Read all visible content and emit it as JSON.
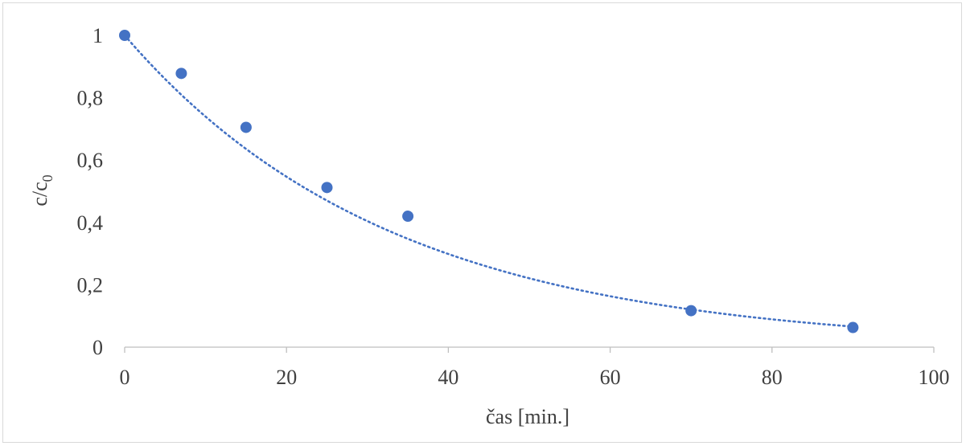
{
  "chart_data": {
    "type": "scatter",
    "xlabel": "čas [min.]",
    "ylabel": {
      "main": "c/c",
      "subscript": "0"
    },
    "xlim": [
      0,
      100
    ],
    "ylim": [
      0,
      1
    ],
    "xticks": [
      0,
      20,
      40,
      60,
      80,
      100
    ],
    "xtick_labels": [
      "0",
      "20",
      "40",
      "60",
      "80",
      "100"
    ],
    "yticks": [
      0,
      0.2,
      0.4,
      0.6,
      0.8,
      1
    ],
    "ytick_labels": [
      "0",
      "0,2",
      "0,4",
      "0,6",
      "0,8",
      "1"
    ],
    "grid": false,
    "legend": "none",
    "series": [
      {
        "x": [
          0,
          7,
          15,
          25,
          35,
          70,
          90
        ],
        "y": [
          1.0,
          0.878,
          0.705,
          0.512,
          0.42,
          0.117,
          0.063
        ],
        "marker": "circle",
        "color": "#4472c4"
      }
    ],
    "trendline": {
      "kind": "exponential",
      "style": "dotted",
      "color": "#4472c4",
      "x_range": [
        0,
        90
      ],
      "equation": {
        "a": 1.0,
        "k": 0.0302
      }
    }
  }
}
